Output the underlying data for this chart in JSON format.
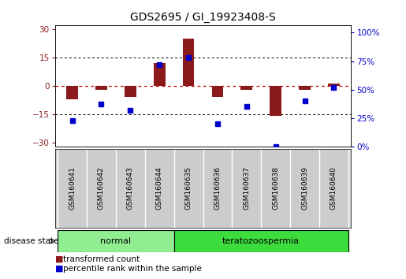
{
  "title": "GDS2695 / GI_19923408-S",
  "samples": [
    "GSM160641",
    "GSM160642",
    "GSM160643",
    "GSM160644",
    "GSM160635",
    "GSM160636",
    "GSM160637",
    "GSM160638",
    "GSM160639",
    "GSM160640"
  ],
  "transformed_count": [
    -7,
    -2,
    -6,
    12,
    25,
    -6,
    -2,
    -16,
    -2,
    1
  ],
  "percentile_rank": [
    23,
    37,
    32,
    72,
    78,
    20,
    35,
    0,
    40,
    52
  ],
  "groups": [
    {
      "label": "normal",
      "start": 0,
      "end": 4,
      "color": "#90ee90"
    },
    {
      "label": "teratozoospermia",
      "start": 4,
      "end": 10,
      "color": "#3ddc3d"
    }
  ],
  "ylim_left": [
    -32,
    32
  ],
  "yticks_left": [
    -30,
    -15,
    0,
    15,
    30
  ],
  "ylim_right": [
    0,
    106.67
  ],
  "yticks_right": [
    0,
    25,
    50,
    75,
    100
  ],
  "bar_color": "#8B1A1A",
  "dot_color": "#0000cc",
  "hline_color": "#cc0000",
  "dotline_color": "black",
  "bg_color": "#ffffff",
  "plot_bg": "#ffffff",
  "sample_bg": "#cccccc",
  "legend_tc": "transformed count",
  "legend_pr": "percentile rank within the sample",
  "disease_label": "disease state"
}
